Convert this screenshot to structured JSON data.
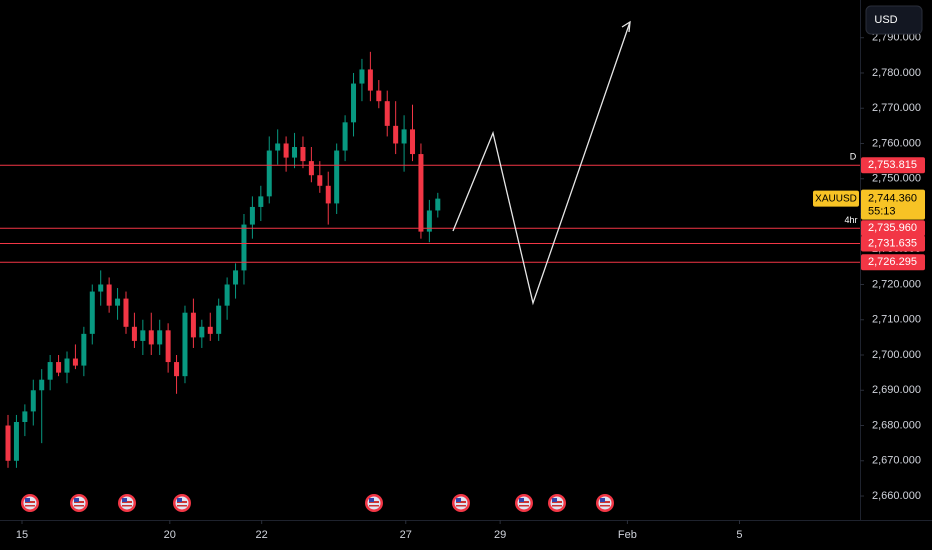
{
  "chart_data": {
    "type": "candlestick",
    "button": "USD",
    "candles": [
      [
        2680,
        2683,
        2668,
        2670
      ],
      [
        2670,
        2683,
        2668,
        2681
      ],
      [
        2681,
        2686,
        2677,
        2684
      ],
      [
        2684,
        2693,
        2680,
        2690
      ],
      [
        2690,
        2696,
        2675,
        2693
      ],
      [
        2693,
        2700,
        2690,
        2698
      ],
      [
        2698,
        2700,
        2694,
        2695
      ],
      [
        2695,
        2701,
        2692,
        2699
      ],
      [
        2699,
        2703,
        2696,
        2697
      ],
      [
        2697,
        2708,
        2694,
        2706
      ],
      [
        2706,
        2720,
        2703,
        2718
      ],
      [
        2718,
        2724,
        2714,
        2720
      ],
      [
        2720,
        2722,
        2712,
        2714
      ],
      [
        2714,
        2719,
        2710,
        2716
      ],
      [
        2716,
        2718,
        2706,
        2708
      ],
      [
        2708,
        2712,
        2702,
        2704
      ],
      [
        2704,
        2710,
        2700,
        2707
      ],
      [
        2707,
        2712,
        2700,
        2703
      ],
      [
        2703,
        2710,
        2700,
        2707
      ],
      [
        2707,
        2709,
        2695,
        2698
      ],
      [
        2698,
        2700,
        2689,
        2694
      ],
      [
        2694,
        2714,
        2692,
        2712
      ],
      [
        2712,
        2716,
        2702,
        2705
      ],
      [
        2705,
        2710,
        2702,
        2708
      ],
      [
        2708,
        2712,
        2704,
        2706
      ],
      [
        2706,
        2716,
        2704,
        2714
      ],
      [
        2714,
        2722,
        2710,
        2720
      ],
      [
        2720,
        2726,
        2716,
        2724
      ],
      [
        2724,
        2740,
        2720,
        2737
      ],
      [
        2737,
        2745,
        2733,
        2742
      ],
      [
        2742,
        2748,
        2738,
        2745
      ],
      [
        2745,
        2762,
        2743,
        2758
      ],
      [
        2758,
        2764,
        2754,
        2760
      ],
      [
        2760,
        2762,
        2752,
        2756
      ],
      [
        2756,
        2763,
        2753,
        2759
      ],
      [
        2759,
        2762,
        2753,
        2755
      ],
      [
        2755,
        2759,
        2749,
        2751
      ],
      [
        2751,
        2755,
        2746,
        2748
      ],
      [
        2748,
        2752,
        2737,
        2743
      ],
      [
        2743,
        2760,
        2740,
        2758
      ],
      [
        2758,
        2768,
        2755,
        2766
      ],
      [
        2766,
        2780,
        2762,
        2777
      ],
      [
        2777,
        2784,
        2772,
        2781
      ],
      [
        2781,
        2786,
        2772,
        2775
      ],
      [
        2775,
        2778,
        2770,
        2772
      ],
      [
        2772,
        2775,
        2762,
        2765
      ],
      [
        2765,
        2772,
        2757,
        2760
      ],
      [
        2760,
        2768,
        2752,
        2764
      ],
      [
        2764,
        2771,
        2755,
        2757
      ],
      [
        2757,
        2760,
        2733,
        2735
      ],
      [
        2735,
        2744,
        2732,
        2741
      ],
      [
        2741,
        2746,
        2739,
        2744.36
      ]
    ],
    "up_color": "#089981",
    "down_color": "#f23645",
    "xlim": [
      -0.95,
      101.1
    ],
    "xticks": [
      {
        "value": 1.66,
        "label": "15"
      },
      {
        "value": 19.2,
        "label": "20"
      },
      {
        "value": 30.1,
        "label": "22"
      },
      {
        "value": 47.2,
        "label": "27"
      },
      {
        "value": 58.4,
        "label": "29"
      },
      {
        "value": 73.5,
        "label": "Feb"
      },
      {
        "value": 86.8,
        "label": "5"
      }
    ],
    "ylim": [
      2653.2,
      2800.7
    ],
    "yticks": [
      {
        "value": 2660,
        "label": "2,660.000"
      },
      {
        "value": 2670,
        "label": "2,670.000"
      },
      {
        "value": 2680,
        "label": "2,680.000"
      },
      {
        "value": 2690,
        "label": "2,690.000"
      },
      {
        "value": 2700,
        "label": "2,700.000"
      },
      {
        "value": 2710,
        "label": "2,710.000"
      },
      {
        "value": 2720,
        "label": "2,720.000"
      },
      {
        "value": 2730,
        "label": "2,730.000"
      },
      {
        "value": 2740,
        "label": "2,740.000"
      },
      {
        "value": 2750,
        "label": "2,750.000"
      },
      {
        "value": 2760,
        "label": "2,760.000"
      },
      {
        "value": 2770,
        "label": "2,770.000"
      },
      {
        "value": 2780,
        "label": "2,780.000"
      },
      {
        "value": 2790,
        "label": "2,790.000"
      }
    ],
    "levels": [
      {
        "value": 2753.815,
        "label": "2,753.815",
        "color": "#f23645"
      },
      {
        "value": 2735.96,
        "label": "2,735.960",
        "color": "#f23645"
      },
      {
        "value": 2731.635,
        "label": "2,731.635",
        "color": "#f23645"
      },
      {
        "value": 2726.295,
        "label": "2,726.295",
        "color": "#f23645"
      }
    ],
    "level_marker": "D",
    "current_price": {
      "value": 2744.36,
      "label": "2,744.360",
      "symbol": "XAUUSD",
      "countdown": "55:13",
      "interval": "4hr",
      "color": "#f7c325"
    }
  }
}
